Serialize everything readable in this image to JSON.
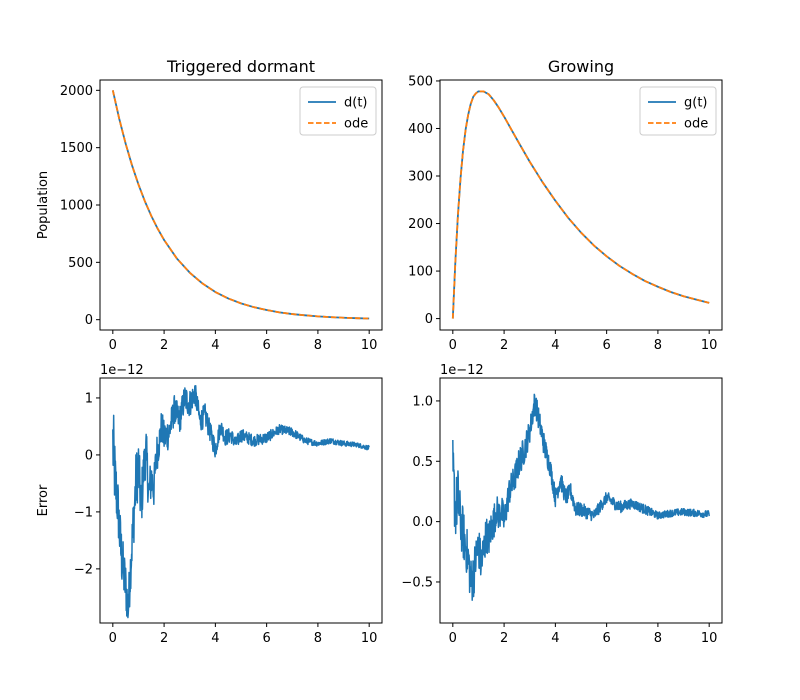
{
  "chart_data": [
    {
      "type": "line",
      "title": "Triggered dormant",
      "xlabel": "",
      "ylabel": "Population",
      "xlim": [
        -0.5,
        10.5
      ],
      "ylim": [
        -90,
        2090
      ],
      "xticks": [
        0,
        2,
        4,
        6,
        8,
        10
      ],
      "yticks": [
        0,
        500,
        1000,
        1500,
        2000
      ],
      "grid": false,
      "legend_location": "upper right",
      "series": [
        {
          "name": "d(t)",
          "color": "#1f77b4",
          "style": "solid",
          "x": [
            0,
            0.25,
            0.5,
            0.75,
            1,
            1.25,
            1.5,
            1.75,
            2,
            2.5,
            3,
            3.5,
            4,
            4.5,
            5,
            5.5,
            6,
            6.5,
            7,
            7.5,
            8,
            8.5,
            9,
            9.5,
            10
          ],
          "y": [
            2000,
            1752,
            1535,
            1345,
            1179,
            1033,
            905,
            793,
            695,
            533,
            410,
            315,
            241,
            185,
            142,
            109,
            84,
            64,
            49,
            38,
            29,
            22,
            17,
            13,
            10
          ]
        },
        {
          "name": "ode",
          "color": "#ff7f0e",
          "style": "dashed",
          "x": [
            0,
            0.25,
            0.5,
            0.75,
            1,
            1.25,
            1.5,
            1.75,
            2,
            2.5,
            3,
            3.5,
            4,
            4.5,
            5,
            5.5,
            6,
            6.5,
            7,
            7.5,
            8,
            8.5,
            9,
            9.5,
            10
          ],
          "y": [
            2000,
            1752,
            1535,
            1345,
            1179,
            1033,
            905,
            793,
            695,
            533,
            410,
            315,
            241,
            185,
            142,
            109,
            84,
            64,
            49,
            38,
            29,
            22,
            17,
            13,
            10
          ]
        }
      ]
    },
    {
      "type": "line",
      "title": "Growing",
      "xlabel": "",
      "ylabel": "",
      "xlim": [
        -0.5,
        10.5
      ],
      "ylim": [
        -24,
        502
      ],
      "xticks": [
        0,
        2,
        4,
        6,
        8,
        10
      ],
      "yticks": [
        0,
        100,
        200,
        300,
        400,
        500
      ],
      "grid": false,
      "legend_location": "upper right",
      "series": [
        {
          "name": "g(t)",
          "color": "#1f77b4",
          "style": "solid",
          "x": [
            0,
            0.1,
            0.2,
            0.3,
            0.4,
            0.5,
            0.6,
            0.7,
            0.8,
            0.9,
            1,
            1.2,
            1.4,
            1.6,
            1.8,
            2,
            2.5,
            3,
            3.5,
            4,
            4.5,
            5,
            5.5,
            6,
            6.5,
            7,
            7.5,
            8,
            8.5,
            9,
            9.5,
            10
          ],
          "y": [
            0,
            121,
            218,
            295,
            354,
            398,
            429,
            452,
            467,
            474,
            478,
            478,
            472,
            459,
            443,
            425,
            377,
            330,
            287,
            248,
            212,
            181,
            154,
            131,
            111,
            94,
            79,
            67,
            56,
            47,
            40,
            33
          ]
        },
        {
          "name": "ode",
          "color": "#ff7f0e",
          "style": "dashed",
          "x": [
            0,
            0.1,
            0.2,
            0.3,
            0.4,
            0.5,
            0.6,
            0.7,
            0.8,
            0.9,
            1,
            1.2,
            1.4,
            1.6,
            1.8,
            2,
            2.5,
            3,
            3.5,
            4,
            4.5,
            5,
            5.5,
            6,
            6.5,
            7,
            7.5,
            8,
            8.5,
            9,
            9.5,
            10
          ],
          "y": [
            0,
            121,
            218,
            295,
            354,
            398,
            429,
            452,
            467,
            474,
            478,
            478,
            472,
            459,
            443,
            425,
            377,
            330,
            287,
            248,
            212,
            181,
            154,
            131,
            111,
            94,
            79,
            67,
            56,
            47,
            40,
            33
          ]
        }
      ]
    },
    {
      "type": "line",
      "title": "",
      "xlabel": "",
      "ylabel": "Error",
      "offset_text": "1e−12",
      "xlim": [
        -0.5,
        10.5
      ],
      "ylim": [
        -2.95,
        1.35
      ],
      "xticks": [
        0,
        2,
        4,
        6,
        8,
        10
      ],
      "yticks": [
        -2,
        -1,
        0,
        1
      ],
      "yticklabels": [
        "−2",
        "−1",
        "0",
        "1"
      ],
      "grid": false,
      "series": [
        {
          "name": "",
          "color": "#1f77b4",
          "style": "solid",
          "x": [
            0,
            0.1,
            0.2,
            0.3,
            0.4,
            0.5,
            0.6,
            0.7,
            0.8,
            0.9,
            1.0,
            1.1,
            1.2,
            1.3,
            1.4,
            1.5,
            1.6,
            1.7,
            1.8,
            1.9,
            2.0,
            2.2,
            2.4,
            2.6,
            2.8,
            3.0,
            3.2,
            3.4,
            3.6,
            3.8,
            4.0,
            4.2,
            4.4,
            4.6,
            4.8,
            5.0,
            5.5,
            6.0,
            6.5,
            7.0,
            7.5,
            8.0,
            8.5,
            9.0,
            9.5,
            10.0
          ],
          "y": [
            0.2,
            -0.5,
            -0.9,
            -1.6,
            -2.0,
            -2.3,
            -2.7,
            -1.9,
            -1.2,
            -0.5,
            -0.2,
            -0.9,
            -0.3,
            0.1,
            -0.7,
            -0.4,
            -0.6,
            0.0,
            0.2,
            0.5,
            0.3,
            0.4,
            0.8,
            0.6,
            1.0,
            0.9,
            1.1,
            0.6,
            0.7,
            0.4,
            0.1,
            0.5,
            0.3,
            0.35,
            0.2,
            0.35,
            0.25,
            0.3,
            0.45,
            0.4,
            0.25,
            0.2,
            0.25,
            0.2,
            0.18,
            0.12
          ],
          "noise": [
            0.8,
            0.6,
            0.5,
            0.55,
            0.5,
            0.45,
            0.4,
            0.45,
            0.5,
            0.55,
            0.5,
            0.5,
            0.45,
            0.4,
            0.4,
            0.4,
            0.35,
            0.35,
            0.3,
            0.3,
            0.3,
            0.3,
            0.25,
            0.25,
            0.25,
            0.25,
            0.2,
            0.2,
            0.2,
            0.18,
            0.18,
            0.15,
            0.15,
            0.13,
            0.12,
            0.12,
            0.1,
            0.1,
            0.08,
            0.08,
            0.06,
            0.05,
            0.05,
            0.05,
            0.04,
            0.04
          ]
        }
      ]
    },
    {
      "type": "line",
      "title": "",
      "xlabel": "",
      "ylabel": "",
      "offset_text": "1e−12",
      "xlim": [
        -0.5,
        10.5
      ],
      "ylim": [
        -0.84,
        1.19
      ],
      "xticks": [
        0,
        2,
        4,
        6,
        8,
        10
      ],
      "yticks": [
        -0.5,
        0.0,
        0.5,
        1.0
      ],
      "yticklabels": [
        "−0.5",
        "0.0",
        "0.5",
        "1.0"
      ],
      "grid": false,
      "series": [
        {
          "name": "",
          "color": "#1f77b4",
          "style": "solid",
          "x": [
            0,
            0.1,
            0.2,
            0.3,
            0.4,
            0.5,
            0.6,
            0.7,
            0.8,
            0.9,
            1.0,
            1.1,
            1.2,
            1.3,
            1.4,
            1.5,
            1.6,
            1.7,
            1.8,
            1.9,
            2.0,
            2.2,
            2.4,
            2.6,
            2.8,
            3.0,
            3.2,
            3.4,
            3.6,
            3.8,
            4.0,
            4.2,
            4.4,
            4.6,
            4.8,
            5.0,
            5.5,
            6.0,
            6.5,
            7.0,
            7.5,
            8.0,
            8.5,
            9.0,
            9.5,
            10.0
          ],
          "y": [
            0.4,
            0.1,
            0.2,
            0.0,
            -0.1,
            -0.2,
            -0.3,
            -0.5,
            -0.45,
            -0.3,
            -0.2,
            -0.35,
            -0.25,
            -0.1,
            -0.15,
            -0.05,
            0.0,
            0.1,
            0.05,
            0.1,
            0.0,
            0.25,
            0.35,
            0.5,
            0.6,
            0.75,
            1.0,
            0.8,
            0.6,
            0.45,
            0.2,
            0.35,
            0.2,
            0.25,
            0.1,
            0.1,
            0.05,
            0.2,
            0.12,
            0.15,
            0.1,
            0.05,
            0.07,
            0.08,
            0.07,
            0.06
          ],
          "noise": [
            0.3,
            0.25,
            0.25,
            0.22,
            0.22,
            0.2,
            0.2,
            0.2,
            0.2,
            0.18,
            0.18,
            0.18,
            0.18,
            0.15,
            0.15,
            0.15,
            0.15,
            0.13,
            0.13,
            0.13,
            0.13,
            0.12,
            0.12,
            0.12,
            0.12,
            0.1,
            0.1,
            0.1,
            0.1,
            0.08,
            0.08,
            0.08,
            0.07,
            0.07,
            0.06,
            0.06,
            0.05,
            0.05,
            0.05,
            0.04,
            0.04,
            0.03,
            0.03,
            0.03,
            0.03,
            0.03
          ]
        }
      ]
    }
  ]
}
